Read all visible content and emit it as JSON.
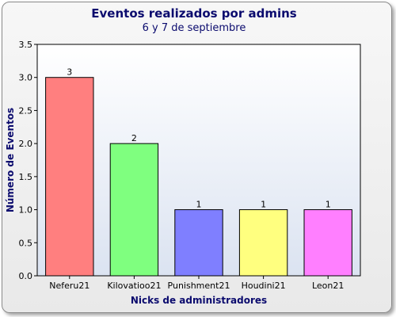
{
  "chart_data": {
    "type": "bar",
    "title": "Eventos realizados por admins",
    "subtitle": "6 y 7 de septiembre",
    "xlabel": "Nicks de administradores",
    "ylabel": "Número de Eventos",
    "categories": [
      "Neferu21",
      "Kilovatioo21",
      "Punishment21",
      "Houdini21",
      "Leon21"
    ],
    "values": [
      3,
      2,
      1,
      1,
      1
    ],
    "colors": [
      "#ff7f7f",
      "#7fff7f",
      "#7f7fff",
      "#ffff7f",
      "#ff7fff"
    ],
    "ylim": [
      0,
      3.5
    ],
    "yticks": [
      "0.0",
      "0.5",
      "1.0",
      "1.5",
      "2.0",
      "2.5",
      "3.0",
      "3.5"
    ],
    "data_labels": [
      "3",
      "2",
      "1",
      "1",
      "1"
    ],
    "grid": false,
    "legend": "none"
  }
}
